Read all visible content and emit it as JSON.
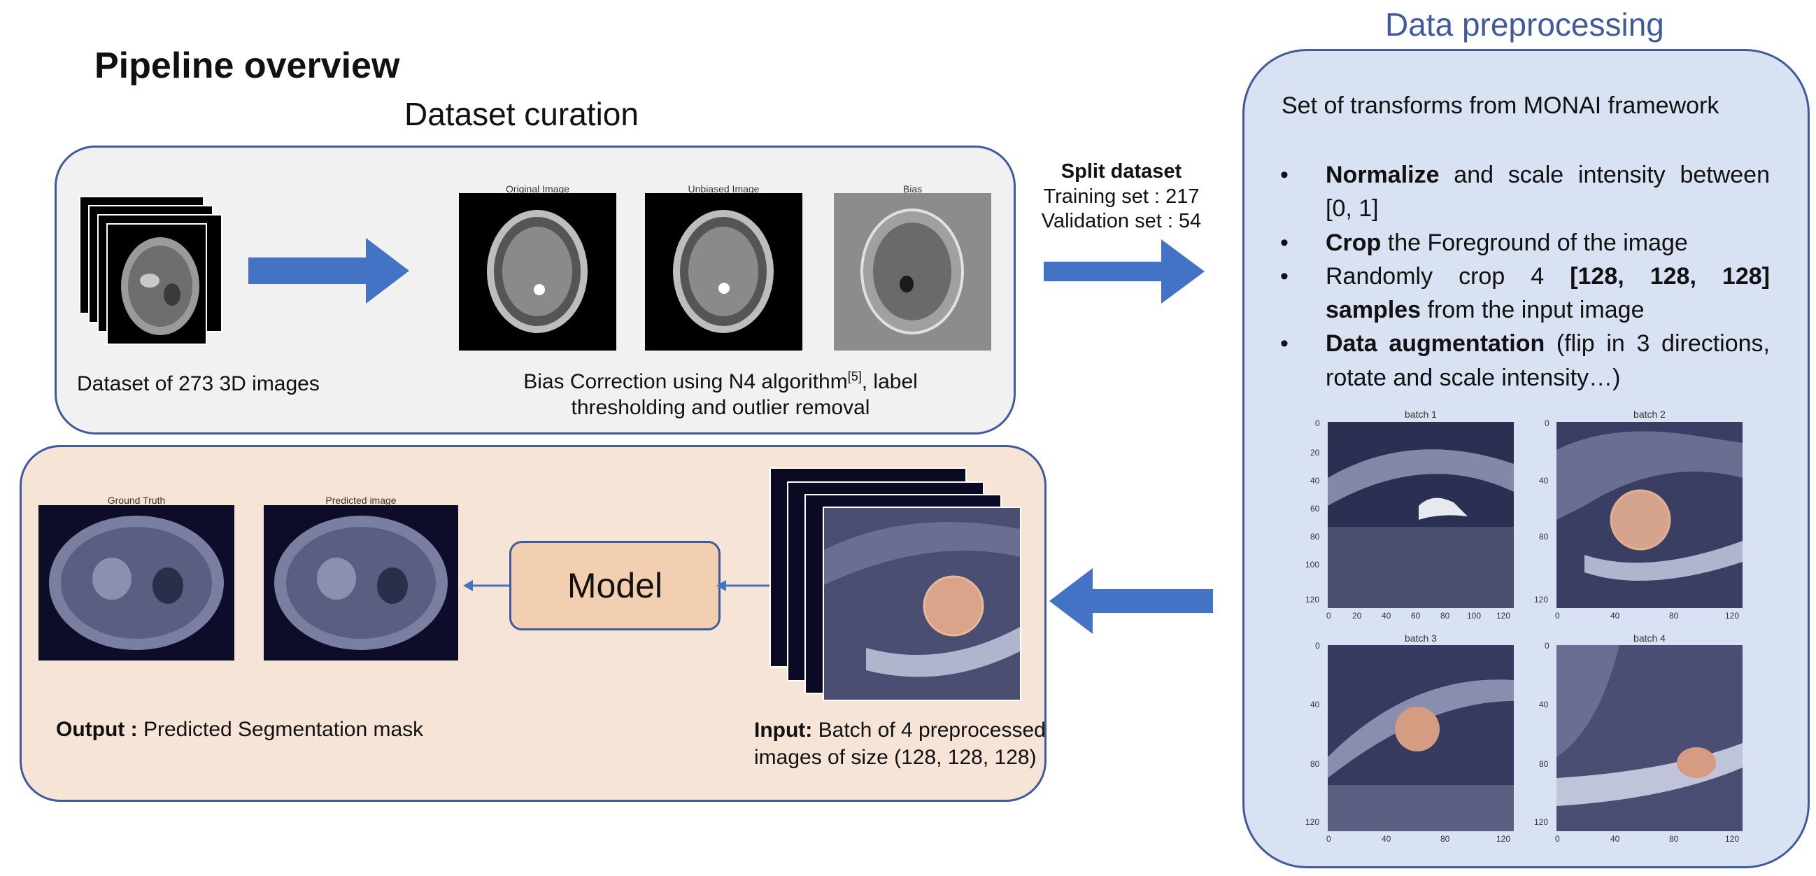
{
  "titles": {
    "main": "Pipeline overview",
    "curation": "Dataset curation",
    "preprocessing": "Data preprocessing"
  },
  "curation": {
    "dataset_caption": "Dataset of 273 3D images",
    "bias_caption_line1": "Bias Correction using N4 algorithm",
    "bias_caption_ref": "[5]",
    "bias_caption_line1_end": ", label",
    "bias_caption_line2": "thresholding and outlier removal",
    "image_titles": [
      "Original Image",
      "Unbiased Image",
      "Bias"
    ]
  },
  "split": {
    "title": "Split dataset",
    "training": "Training set : 217",
    "validation": "Validation set : 54"
  },
  "preprocessing": {
    "intro": "Set of transforms from MONAI framework",
    "bullet1_bold": "Normalize",
    "bullet1_rest": " and scale intensity between [0, 1]",
    "bullet2_bold": "Crop",
    "bullet2_rest": " the Foreground of the image",
    "bullet3_pre": "Randomly crop 4 ",
    "bullet3_bold": "[128, 128, 128] samples",
    "bullet3_rest": " from the input image",
    "bullet4_bold": "Data augmentation",
    "bullet4_rest": " (flip in 3 directions, rotate and scale intensity…)",
    "batch_titles": [
      "batch 1",
      "batch 2",
      "batch 3",
      "batch 4"
    ],
    "batch_ticks": [
      "0",
      "20",
      "40",
      "60",
      "80",
      "100",
      "120"
    ]
  },
  "model": {
    "label": "Model",
    "output_bold": "Output :",
    "output_rest": " Predicted Segmentation mask",
    "input_bold": "Input:",
    "input_rest": " Batch of 4 preprocessed",
    "input_line2": "images of size (128, 128, 128)",
    "output_image_titles": [
      "Ground Truth",
      "Predicted image"
    ]
  },
  "colors": {
    "accent": "#3f5b9c",
    "arrow": "#4472c4",
    "curation_bg": "#f1f1f1",
    "model_bg": "#f6e4d6",
    "prep_bg": "#d9e2f2",
    "model_box": "#f2cfb0"
  }
}
